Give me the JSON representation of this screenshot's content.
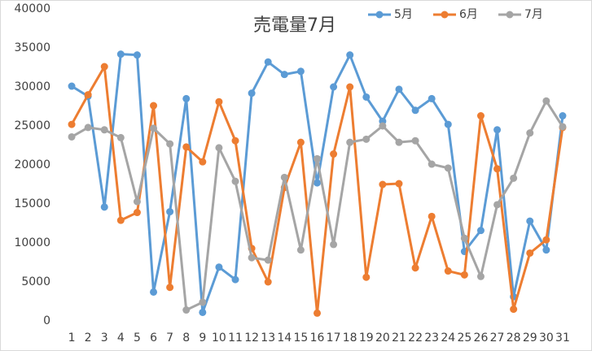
{
  "chart_data": {
    "type": "line",
    "title": "売電量7月",
    "categories": [
      "1",
      "2",
      "3",
      "4",
      "5",
      "6",
      "7",
      "8",
      "9",
      "10",
      "11",
      "12",
      "13",
      "14",
      "15",
      "16",
      "17",
      "18",
      "19",
      "20",
      "21",
      "22",
      "23",
      "24",
      "25",
      "26",
      "27",
      "28",
      "29",
      "30",
      "31"
    ],
    "series": [
      {
        "name": "5月",
        "color": "#5b9bd5",
        "values": [
          30100,
          28800,
          14600,
          34200,
          34100,
          3700,
          14000,
          28500,
          1100,
          6900,
          5300,
          29200,
          33200,
          31600,
          32000,
          17700,
          30000,
          34100,
          28700,
          25600,
          29700,
          27000,
          28500,
          25200,
          8900,
          11600,
          24500,
          3100,
          12800,
          9100,
          26300
        ]
      },
      {
        "name": "6月",
        "color": "#ed7d31",
        "values": [
          25200,
          29000,
          32600,
          12900,
          13900,
          27600,
          4300,
          22300,
          20400,
          28100,
          23100,
          9300,
          5000,
          17100,
          22900,
          1000,
          21400,
          30000,
          5600,
          17500,
          17600,
          6800,
          13400,
          6400,
          5900,
          26300,
          19500,
          1500,
          8700,
          10400,
          24800
        ]
      },
      {
        "name": "7月",
        "color": "#a5a5a5",
        "values": [
          23600,
          24800,
          24500,
          23500,
          15300,
          24700,
          22700,
          1400,
          2400,
          22200,
          17900,
          8100,
          7800,
          18400,
          9100,
          20800,
          9800,
          22900,
          23300,
          25000,
          22900,
          23100,
          20100,
          19600,
          10600,
          5700,
          14900,
          18300,
          24100,
          28200,
          24900
        ]
      }
    ],
    "ylim": [
      0,
      40000
    ],
    "yticks": [
      0,
      5000,
      10000,
      15000,
      20000,
      25000,
      30000,
      35000,
      40000
    ],
    "grid": false
  }
}
